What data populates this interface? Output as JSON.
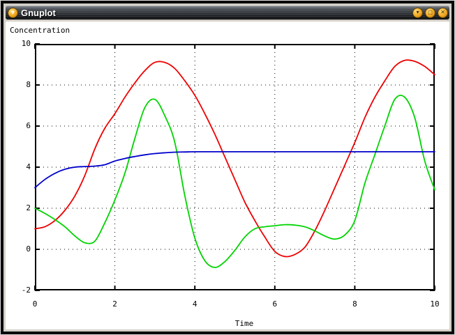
{
  "window": {
    "title": "Gnuplot",
    "menu_glyph": "▼",
    "buttons": [
      {
        "name": "minimize-button",
        "glyph": "▾"
      },
      {
        "name": "maximize-button",
        "glyph": "□"
      },
      {
        "name": "close-button",
        "glyph": "✕"
      }
    ],
    "frame_color": "#d4d0c8",
    "button_color": "#f2a71e"
  },
  "chart_data": {
    "type": "line",
    "title": "",
    "ylabel": "Concentration",
    "xlabel": "Time",
    "xlim": [
      0,
      10
    ],
    "ylim": [
      -2,
      10
    ],
    "xticks": [
      0,
      2,
      4,
      6,
      8,
      10
    ],
    "yticks": [
      -2,
      0,
      2,
      4,
      6,
      8,
      10
    ],
    "grid": true,
    "legend": "none",
    "background": "#ffffff",
    "x": [
      0,
      0.25,
      0.5,
      0.75,
      1,
      1.25,
      1.5,
      1.75,
      2,
      2.25,
      2.5,
      2.75,
      3,
      3.25,
      3.5,
      3.75,
      4,
      4.25,
      4.5,
      4.75,
      5,
      5.25,
      5.5,
      5.75,
      6,
      6.25,
      6.5,
      6.75,
      7,
      7.25,
      7.5,
      7.75,
      8,
      8.25,
      8.5,
      8.75,
      9,
      9.25,
      9.5,
      9.75,
      10
    ],
    "series": [
      {
        "name": "red-series",
        "color": "#ee0000",
        "values": [
          1.0,
          1.1,
          1.4,
          1.9,
          2.6,
          3.6,
          4.9,
          5.9,
          6.6,
          7.4,
          8.1,
          8.7,
          9.1,
          9.1,
          8.8,
          8.2,
          7.5,
          6.6,
          5.6,
          4.5,
          3.4,
          2.3,
          1.4,
          0.6,
          -0.1,
          -0.35,
          -0.25,
          0.1,
          0.9,
          1.9,
          3.0,
          4.1,
          5.2,
          6.4,
          7.4,
          8.2,
          8.9,
          9.2,
          9.15,
          8.9,
          8.5
        ]
      },
      {
        "name": "green-series",
        "color": "#00d400",
        "values": [
          2.0,
          1.75,
          1.45,
          1.1,
          0.65,
          0.32,
          0.4,
          1.3,
          2.4,
          3.7,
          5.4,
          6.9,
          7.3,
          6.5,
          5.2,
          2.6,
          0.55,
          -0.55,
          -0.88,
          -0.6,
          -0.05,
          0.6,
          1.0,
          1.1,
          1.15,
          1.2,
          1.18,
          1.1,
          0.9,
          0.65,
          0.5,
          0.7,
          1.4,
          3.2,
          4.6,
          6.0,
          7.3,
          7.4,
          6.4,
          4.3,
          2.9
        ]
      },
      {
        "name": "blue-series",
        "color": "#0000cc",
        "values": [
          3.0,
          3.4,
          3.7,
          3.9,
          4.0,
          4.03,
          4.05,
          4.12,
          4.3,
          4.42,
          4.52,
          4.6,
          4.66,
          4.7,
          4.73,
          4.74,
          4.75,
          4.75,
          4.75,
          4.75,
          4.75,
          4.75,
          4.75,
          4.75,
          4.75,
          4.75,
          4.75,
          4.75,
          4.75,
          4.75,
          4.75,
          4.75,
          4.75,
          4.75,
          4.75,
          4.75,
          4.75,
          4.75,
          4.75,
          4.75,
          4.75
        ]
      }
    ]
  }
}
